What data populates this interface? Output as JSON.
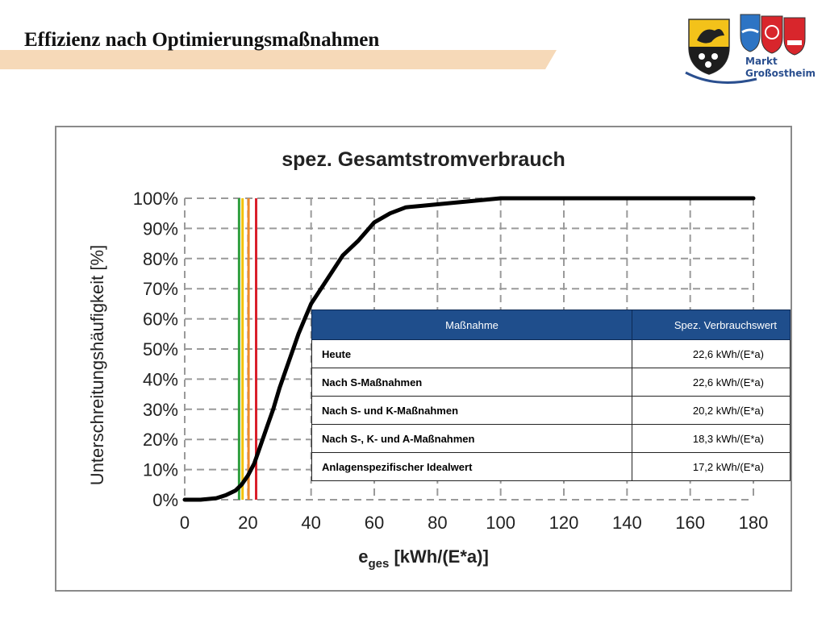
{
  "slide": {
    "title": "Effizienz nach Optimierungsmaßnahmen",
    "logo_text_line1": "Markt",
    "logo_text_line2": "Großostheim"
  },
  "colors": {
    "title_band": "#f6d9b8",
    "table_header": "#1f4e8c",
    "curve": "#000000"
  },
  "chart_data": {
    "type": "line",
    "title": "spez. Gesamtstromverbrauch",
    "xlabel_main": "e",
    "xlabel_sub": "ges",
    "xlabel_unit": " [kWh/(E*a)]",
    "ylabel": "Unterschreitungshäufigkeit [%]",
    "xlim": [
      0,
      180
    ],
    "ylim": [
      0,
      100
    ],
    "x_ticks": [
      0,
      20,
      40,
      60,
      80,
      100,
      120,
      140,
      160,
      180
    ],
    "y_ticks": [
      "0%",
      "10%",
      "20%",
      "30%",
      "40%",
      "50%",
      "60%",
      "70%",
      "80%",
      "90%",
      "100%"
    ],
    "grid": true,
    "series": [
      {
        "x": [
          0,
          5,
          10,
          13,
          16,
          18,
          20,
          22,
          24,
          26,
          28,
          30,
          32,
          34,
          36,
          38,
          40,
          45,
          50,
          55,
          60,
          65,
          70,
          75,
          80,
          90,
          100,
          120,
          140,
          160,
          180
        ],
        "y": [
          0,
          0,
          0.5,
          1.5,
          3,
          5,
          8,
          12,
          18,
          24,
          30,
          37,
          43,
          49,
          55,
          60,
          65,
          73,
          81,
          86,
          92,
          95,
          97,
          97.5,
          98,
          99,
          100,
          100,
          100,
          100,
          100
        ]
      }
    ],
    "vertical_lines": [
      {
        "x": 17.2,
        "color": "#2e9e3e"
      },
      {
        "x": 18.3,
        "color": "#f2c200"
      },
      {
        "x": 20.2,
        "color": "#f08a2c"
      },
      {
        "x": 22.6,
        "color": "#d91e2a"
      }
    ]
  },
  "table": {
    "headers": [
      "Maßnahme",
      "Spez. Verbrauchswert"
    ],
    "rows": [
      [
        "Heute",
        "22,6 kWh/(E*a)"
      ],
      [
        "Nach S-Maßnahmen",
        "22,6 kWh/(E*a)"
      ],
      [
        "Nach S- und K-Maßnahmen",
        "20,2 kWh/(E*a)"
      ],
      [
        "Nach S-, K- und A-Maßnahmen",
        "18,3 kWh/(E*a)"
      ],
      [
        "Anlagenspezifischer Idealwert",
        "17,2 kWh/(E*a)"
      ]
    ]
  }
}
